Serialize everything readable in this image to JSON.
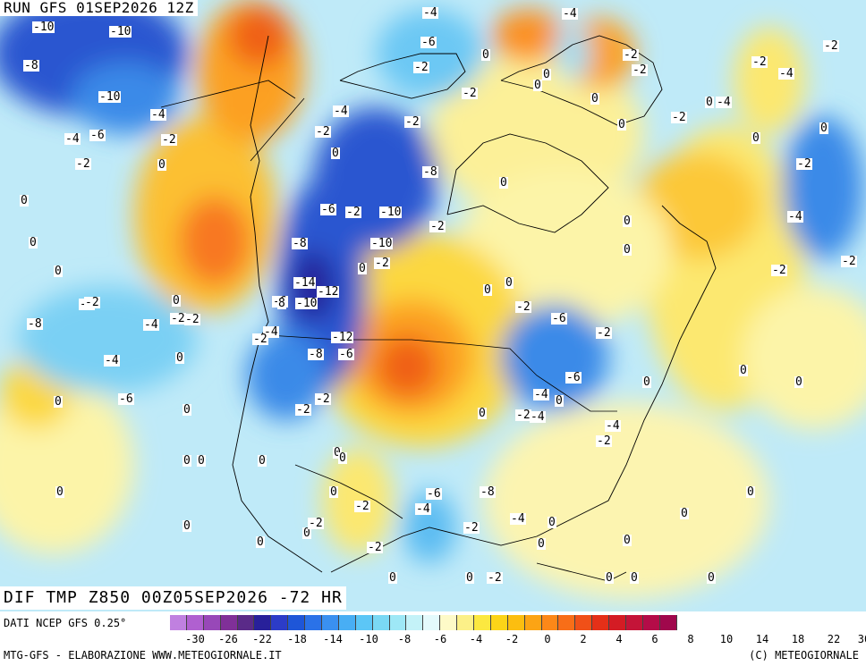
{
  "header": {
    "title": "RUN GFS 01SEP2026 12Z"
  },
  "product": {
    "title": "DIF TMP Z850 00Z05SEP2026 -72 HR"
  },
  "footer": {
    "data_source": "DATI NCEP GFS 0.25°",
    "credits_left": "MTG-GFS - ELABORAZIONE WWW.METEOGIORNALE.IT",
    "credits_right": "(C) METEOGIORNALE"
  },
  "legend": {
    "colors": [
      "#c080e0",
      "#b060d0",
      "#9848b8",
      "#803098",
      "#5a2a88",
      "#28209a",
      "#2c3cc8",
      "#1e56d8",
      "#2a72e8",
      "#3a90f0",
      "#48aef4",
      "#5cc6f6",
      "#7ad8f4",
      "#9ee8f6",
      "#c4f2f8",
      "#e4fafc",
      "#fefac8",
      "#fcf088",
      "#fce840",
      "#fcd418",
      "#fcbe10",
      "#fca414",
      "#fc8818",
      "#f86e18",
      "#f05018",
      "#e43018",
      "#d41c24",
      "#c41438",
      "#b40c48",
      "#a0084c"
    ],
    "tick_labels": [
      "-30",
      "-26",
      "-22",
      "-18",
      "-14",
      "-10",
      "-8",
      "-6",
      "-4",
      "-2",
      "0",
      "2",
      "4",
      "6",
      "8",
      "10",
      "14",
      "18",
      "22",
      "30"
    ]
  },
  "map_labels": [
    "-10",
    "-10",
    "-8",
    "-10",
    "-6",
    "-4",
    "-4",
    "-2",
    "-2",
    "0",
    "0",
    "0",
    "0",
    "-4",
    "-2",
    "-2",
    "-8",
    "-4",
    "-6",
    "-2",
    "-4",
    "-2",
    "-2",
    "-2",
    "-4",
    "0",
    "0",
    "0",
    "-2",
    "-2",
    "-2",
    "-4",
    "-4",
    "-2",
    "0",
    "-6",
    "-8",
    "-6",
    "-2",
    "-10",
    "-10",
    "-8",
    "0",
    "-4",
    "0",
    "2",
    "-14",
    "-12",
    "-6",
    "8",
    "-10",
    "-12",
    "-8",
    "-6",
    "-4",
    "-2",
    "-2",
    "-2",
    "-2",
    "0",
    "0",
    "0",
    "0",
    "0",
    "0",
    "0",
    "-2",
    "-2",
    "-4",
    "-6",
    "-6",
    "-4",
    "-2",
    "-4",
    "-2",
    "0",
    "0",
    "0",
    "-2",
    "0",
    "0",
    "-4",
    "-2",
    "-2",
    "0",
    "-2",
    "-2",
    "-4",
    "-2",
    "0",
    "0",
    "0",
    "0",
    "0",
    "0",
    "0",
    "0",
    "0",
    "0",
    "0",
    "0",
    "-2",
    "0",
    "0",
    "-2",
    "0",
    "0",
    "-2",
    "-2",
    "-4",
    "-6",
    "-8",
    "-4",
    "-2",
    "0",
    "0",
    "0",
    "0",
    "0",
    "0",
    "0",
    "0",
    "0"
  ]
}
